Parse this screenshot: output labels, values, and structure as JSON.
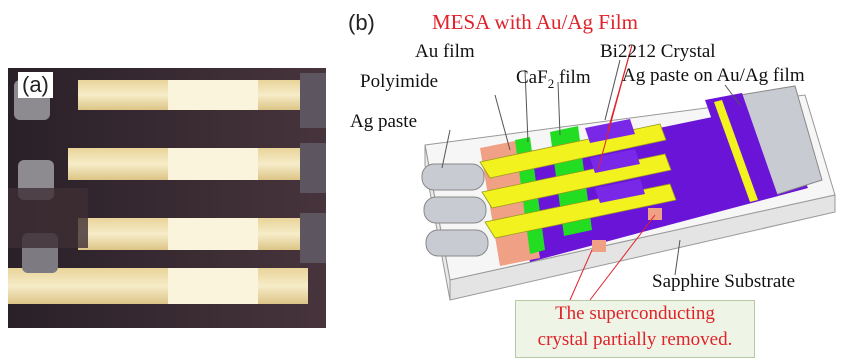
{
  "panel_a": {
    "label": "(a)"
  },
  "panel_b": {
    "label": "(b)",
    "labels": {
      "mesa": "MESA with Au/Ag Film",
      "au_film": "Au film",
      "bi2212": "Bi2212 Crystal",
      "polyimide": "Polyimide",
      "caf2_prefix": "CaF",
      "caf2_sub": "2",
      "caf2_suffix": " film",
      "ag_paste_on_film": "Ag paste on Au/Ag film",
      "ag_paste": "Ag paste",
      "sapphire": "Sapphire Substrate"
    },
    "note": {
      "line1": "The superconducting",
      "line2": "crystal partially removed."
    },
    "colors": {
      "substrate": "#f5f5f5",
      "ag_paste": "#c8ccd2",
      "polyimide": "#f0a085",
      "au_film": "#f2f21e",
      "caf2": "#22dd22",
      "bi2212": "#6a14d8",
      "label_red": "#e0222a"
    }
  }
}
